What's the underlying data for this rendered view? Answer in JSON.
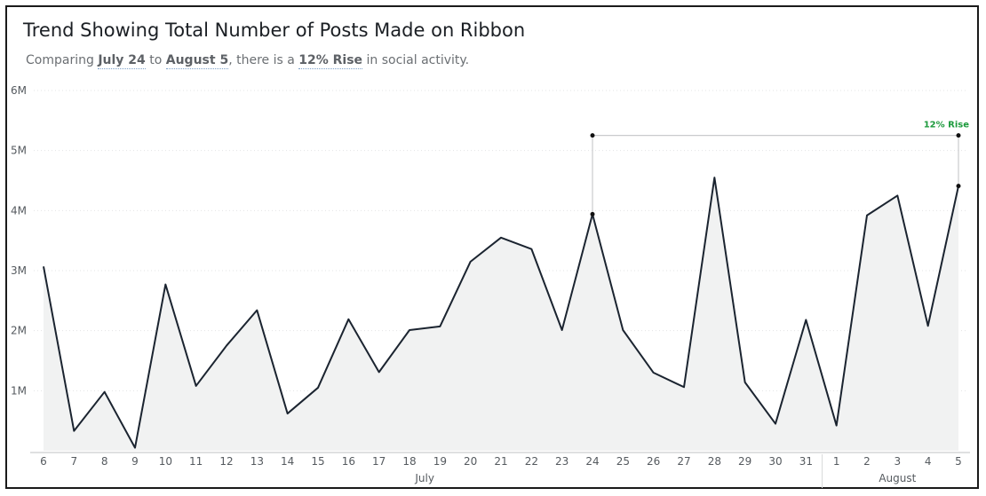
{
  "subtitle": {
    "prefix": "Comparing ",
    "from": "July 24",
    "mid1": " to ",
    "to": "August 5",
    "mid2": ", there is a ",
    "rise": "12% Rise",
    "suffix": " in social activity."
  },
  "chart_data": {
    "type": "area",
    "title": "Trend Showing Total Number of Posts Made on Ribbon",
    "xlabel": "",
    "ylabel": "",
    "x": [
      "6",
      "7",
      "8",
      "9",
      "10",
      "11",
      "12",
      "13",
      "14",
      "15",
      "16",
      "17",
      "18",
      "19",
      "20",
      "21",
      "22",
      "23",
      "24",
      "25",
      "26",
      "27",
      "28",
      "29",
      "30",
      "31",
      "1",
      "2",
      "3",
      "4",
      "5"
    ],
    "months": [
      {
        "label": "July",
        "start": 0,
        "end": 25
      },
      {
        "label": "August",
        "start": 26,
        "end": 30
      }
    ],
    "series": [
      {
        "values": [
          3.07,
          0.33,
          0.98,
          0.05,
          2.77,
          1.08,
          1.75,
          2.34,
          0.62,
          1.05,
          2.19,
          1.31,
          2.01,
          2.07,
          3.15,
          3.55,
          3.36,
          2.01,
          3.94,
          2.01,
          1.3,
          1.06,
          4.55,
          1.14,
          0.45,
          2.18,
          0.42,
          3.92,
          4.25,
          2.08,
          4.41
        ],
        "color": "#1b2430",
        "fill": "#f1f2f2"
      }
    ],
    "yticks": [
      "6M",
      "5M",
      "4M",
      "3M",
      "2M",
      "1M"
    ],
    "ytick_values": [
      6,
      5,
      4,
      3,
      2,
      1
    ],
    "ylim": [
      0,
      6
    ],
    "grid": true,
    "annotation": {
      "label": "12% Rise",
      "from_index": 18,
      "to_index": 30,
      "color": "#1c9a3c"
    }
  }
}
